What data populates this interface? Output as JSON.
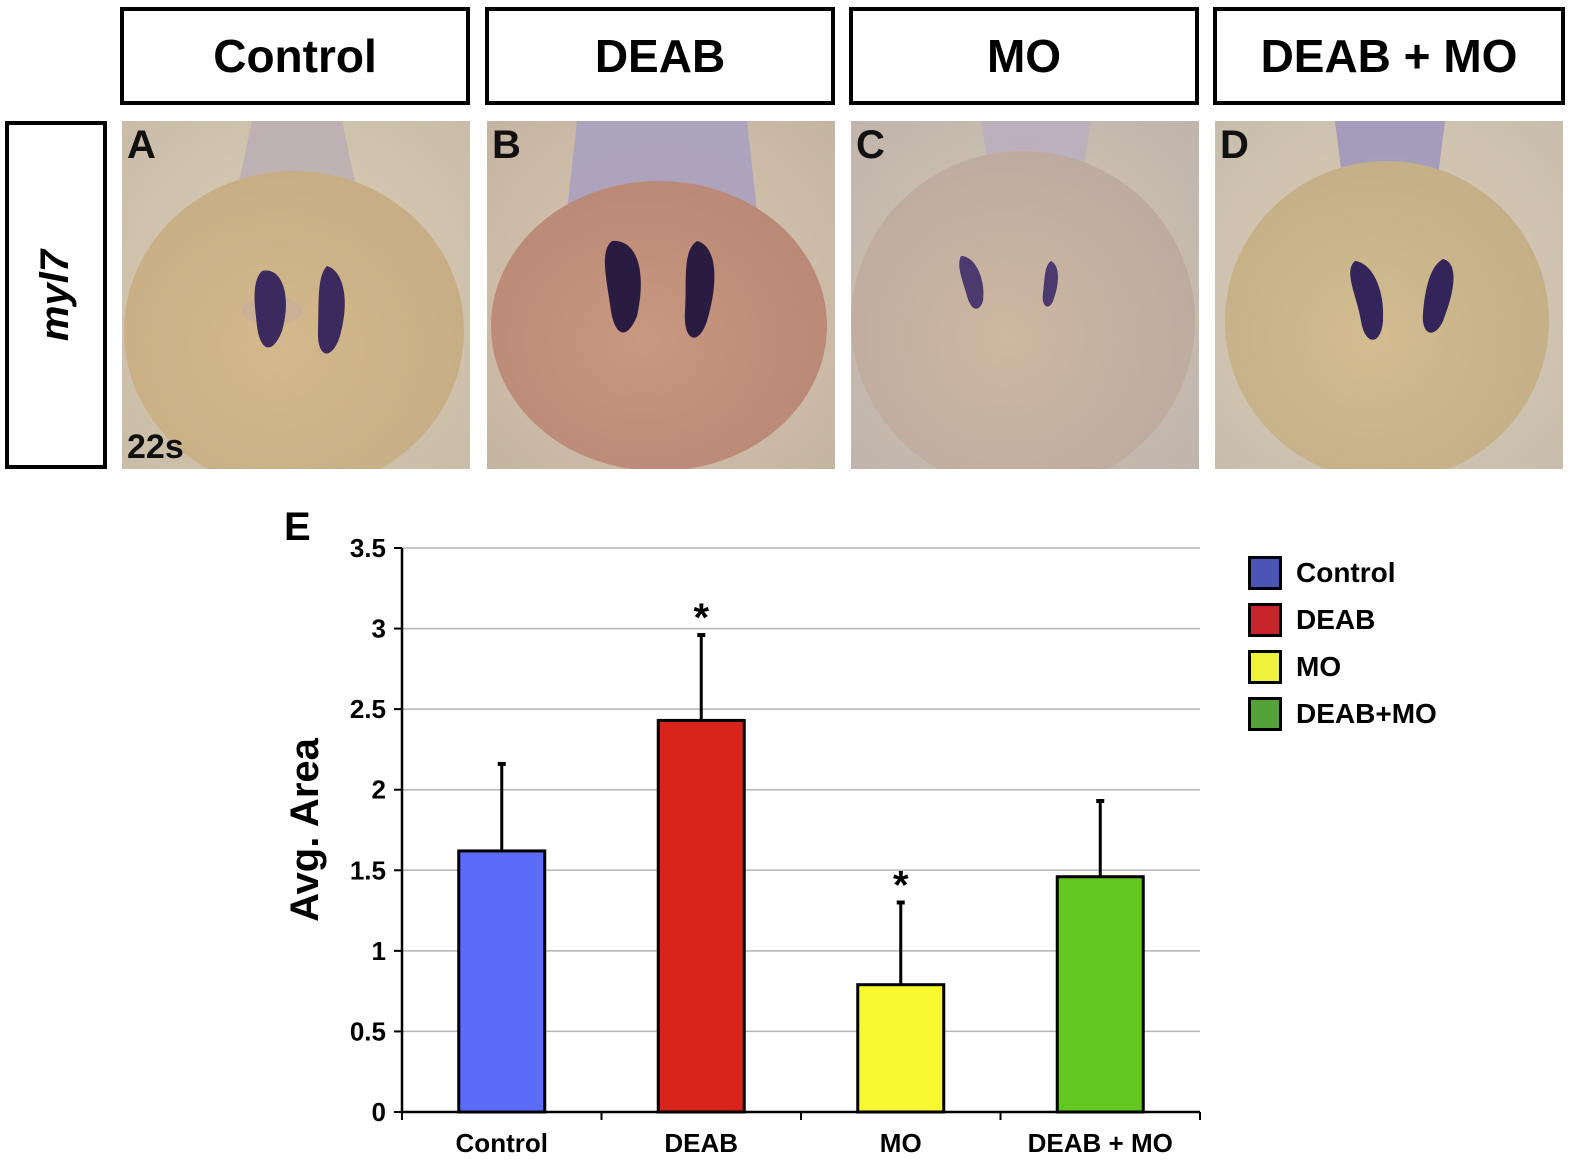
{
  "header": {
    "columns": [
      "Control",
      "DEAB",
      "MO",
      "DEAB + MO"
    ]
  },
  "row_label": "myl7",
  "panels": [
    {
      "letter": "A",
      "stage": "22s"
    },
    {
      "letter": "B",
      "stage": ""
    },
    {
      "letter": "C",
      "stage": ""
    },
    {
      "letter": "D",
      "stage": ""
    }
  ],
  "colors": {
    "control": "#5b6cf8",
    "deab": "#d8251c",
    "mo": "#f8f830",
    "deab_mo": "#62c71e",
    "legend_control": "#4a55b8",
    "legend_deab": "#c8242b",
    "legend_mo": "#eef23a",
    "legend_deab_mo": "#53a33a"
  },
  "chart_data": {
    "type": "bar",
    "panel_label": "E",
    "categories": [
      "Control",
      "DEAB",
      "MO",
      "DEAB + MO"
    ],
    "values": [
      1.62,
      2.43,
      0.79,
      1.46
    ],
    "error_upper": [
      0.54,
      0.53,
      0.51,
      0.47
    ],
    "significance": [
      "",
      "*",
      "*",
      ""
    ],
    "ylabel": "Avg. Area",
    "xlabel": "",
    "ylim": [
      0,
      3.5
    ],
    "yticks": [
      "0",
      "0.5",
      "1",
      "1.5",
      "2",
      "2.5",
      "3",
      "3.5"
    ],
    "grid": true,
    "legend_position": "right",
    "legend": [
      "Control",
      "DEAB",
      "MO",
      "DEAB+MO"
    ]
  }
}
